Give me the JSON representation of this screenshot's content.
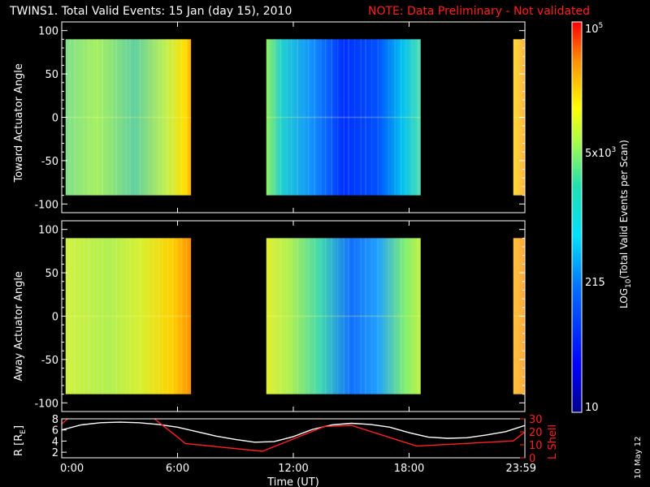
{
  "title": "TWINS1. Total Valid Events: 15 Jan (day  15), 2010",
  "note": "NOTE: Data Preliminary - Not validated",
  "note_color": "#ff2020",
  "date_stamp": "10 May 12",
  "chart_data": [
    {
      "type": "heatmap",
      "name": "toward",
      "ylabel": "Toward Actuator Angle",
      "ylim": [
        -110,
        110
      ],
      "yticks": [
        100,
        50,
        0,
        -50,
        -100
      ],
      "data_yrange": [
        -90,
        90
      ],
      "blocks": [
        {
          "x_start": 0.2,
          "x_end": 6.7,
          "level": "green-yellow"
        },
        {
          "x_start": 10.6,
          "x_end": 18.6,
          "level": "blue"
        },
        {
          "x_start": 23.4,
          "x_end": 24.0,
          "level": "orange-yellow"
        }
      ]
    },
    {
      "type": "heatmap",
      "name": "away",
      "ylabel": "Away Actuator Angle",
      "ylim": [
        -110,
        110
      ],
      "yticks": [
        100,
        50,
        0,
        -50,
        -100
      ],
      "data_yrange": [
        -90,
        90
      ],
      "blocks": [
        {
          "x_start": 0.2,
          "x_end": 6.7,
          "level": "yellow-green"
        },
        {
          "x_start": 10.6,
          "x_end": 18.6,
          "level": "green-blue"
        },
        {
          "x_start": 23.4,
          "x_end": 24.0,
          "level": "orange"
        }
      ]
    },
    {
      "type": "line",
      "name": "orbit",
      "xlabel": "Time (UT)",
      "xticks": [
        "0:00",
        "6:00",
        "12:00",
        "18:00",
        "23:59"
      ],
      "xtick_values": [
        0,
        6,
        12,
        18,
        24
      ],
      "xlim": [
        0,
        24
      ],
      "ylabel_left": "R [R",
      "ylabel_left_sub": "E",
      "ylabel_left_end": "]",
      "ylim_left": [
        1,
        8
      ],
      "yticks_left": [
        8,
        6,
        4,
        2
      ],
      "ylabel_right": "L Shell",
      "ylim_right": [
        0,
        30
      ],
      "yticks_right": [
        30,
        20,
        10,
        0
      ],
      "series": [
        {
          "axis": "left",
          "color": "#ffffff",
          "x": [
            0,
            1,
            2,
            3,
            4,
            5,
            6,
            7,
            8,
            9,
            10,
            11,
            12,
            13,
            14,
            15,
            16,
            17,
            18,
            19,
            20,
            21,
            22,
            23,
            24
          ],
          "y": [
            6.0,
            6.9,
            7.3,
            7.4,
            7.3,
            7.0,
            6.5,
            5.7,
            4.9,
            4.3,
            3.8,
            3.9,
            4.8,
            6.1,
            6.9,
            7.2,
            7.0,
            6.5,
            5.5,
            4.7,
            4.5,
            4.6,
            5.1,
            5.7,
            6.8
          ]
        },
        {
          "axis": "right",
          "color": "#ff2020",
          "x": [
            0,
            0.3,
            1.0,
            4.1,
            4.8,
            6.0,
            6.4,
            10.4,
            13.6,
            15.0,
            18.4,
            23.4,
            24.0
          ],
          "y": [
            26,
            30,
            34,
            34,
            30,
            16,
            11,
            5,
            24,
            25,
            9,
            13,
            20
          ]
        }
      ]
    }
  ],
  "colorbar": {
    "label_main": "LOG",
    "label_sub": "10",
    "label_rest": "(Total Valid Events per Scan)",
    "tick_top": {
      "base": "10",
      "exp": "5"
    },
    "tick_mid": {
      "base": "5x10",
      "exp": "3"
    },
    "tick_215": "215",
    "tick_bottom": "10"
  }
}
